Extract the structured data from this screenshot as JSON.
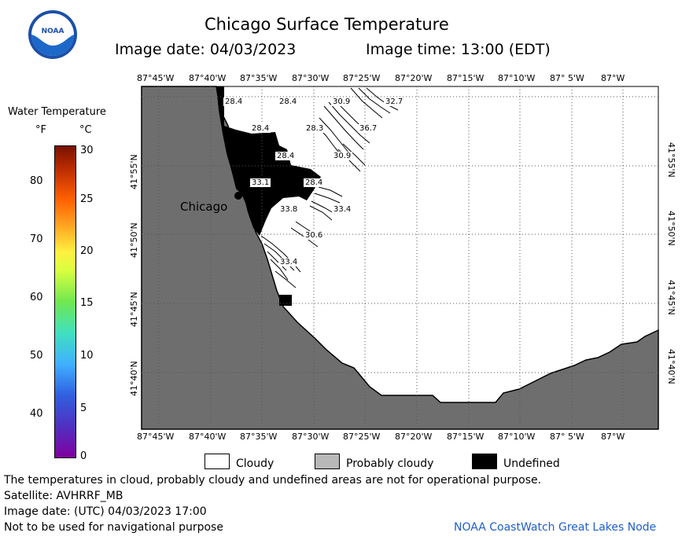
{
  "header": {
    "title": "Chicago Surface Temperature",
    "image_date": "Image date: 04/03/2023",
    "image_time": "Image time: 13:00 (EDT)"
  },
  "logo": {
    "text": "NOAA",
    "icon": "noaa-logo"
  },
  "colorbar": {
    "title": "Water Temperature",
    "unit_f": "°F",
    "unit_c": "°C",
    "f_ticks": [
      "80",
      "70",
      "60",
      "50",
      "40"
    ],
    "c_ticks": [
      "30",
      "25",
      "20",
      "15",
      "10",
      "5",
      "0"
    ]
  },
  "map": {
    "lon_labels": [
      "87°45'W",
      "87°40'W",
      "87°35'W",
      "87°30'W",
      "87°25'W",
      "87°20'W",
      "87°15'W",
      "87°10'W",
      "87° 5'W",
      "87°W"
    ],
    "lat_labels": [
      "41°55'N",
      "41°50'N",
      "41°45'N",
      "41°40'N"
    ],
    "city_label": "Chicago",
    "temperatures": [
      "28.4",
      "28.4",
      "30.9",
      "32.7",
      "28.4",
      "28.3",
      "36.7",
      "28.4",
      "30.9",
      "33.1",
      "28.4",
      "33.8",
      "33.4",
      "30.6",
      "33.4"
    ],
    "colors": {
      "land": "#6e6e6e",
      "undefined": "#000000",
      "water": "#ffffff"
    }
  },
  "legend": {
    "cloudy": "Cloudy",
    "probably_cloudy": "Probably cloudy",
    "undefined": "Undefined"
  },
  "notes": {
    "disclaimer": "The temperatures in cloud, probably cloudy and undefined areas are not for operational purpose.",
    "satellite": "Satellite: AVHRRF_MB",
    "utc_date": "Image date: (UTC) 04/03/2023  17:00",
    "nav_warning": "Not to be used for navigational purpose",
    "source": "NOAA CoastWatch Great Lakes Node"
  }
}
